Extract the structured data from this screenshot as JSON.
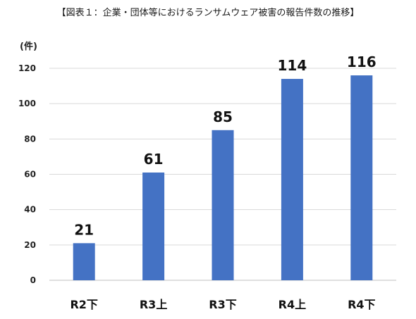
{
  "chart_data": {
    "type": "bar",
    "title": "【図表１：企業・団体等におけるランサムウェア被害の報告件数の推移】",
    "ylabel": "(件)",
    "xlabel": "",
    "categories": [
      "R2下",
      "R3上",
      "R3下",
      "R4上",
      "R4下"
    ],
    "values": [
      21,
      61,
      85,
      114,
      116
    ],
    "ylim": [
      0,
      120
    ],
    "yticks": [
      0,
      20,
      40,
      60,
      80,
      100,
      120
    ],
    "grid": true,
    "legend": "none",
    "bar_color": "#4472C4",
    "grid_color": "#d9d9d9"
  }
}
